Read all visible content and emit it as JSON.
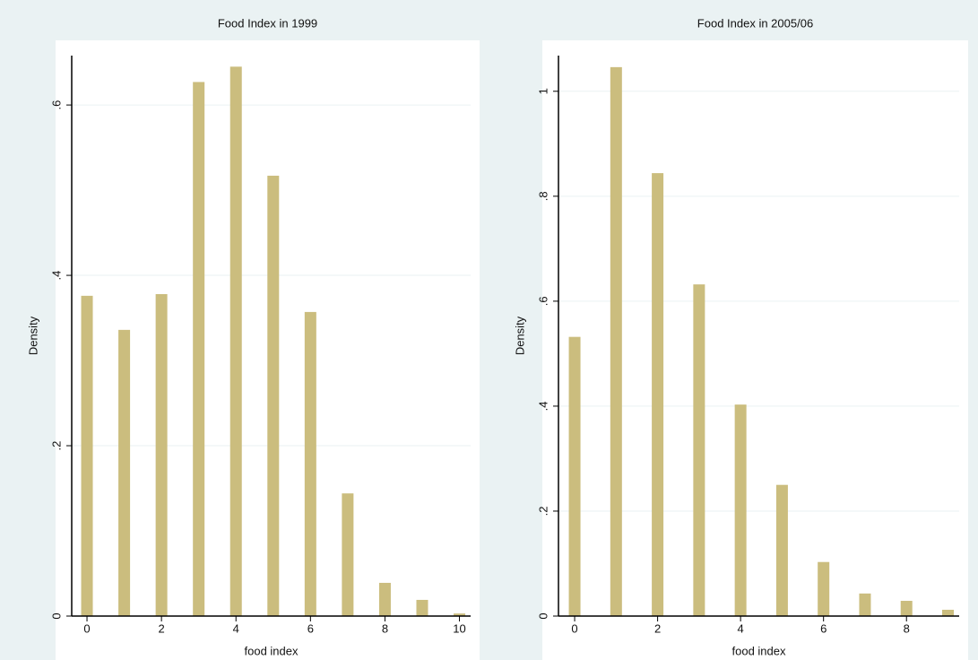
{
  "chart_data": [
    {
      "type": "bar",
      "title": "Food Index in 1999",
      "x_label": "food index",
      "y_label": "Density",
      "x": [
        0,
        1,
        2,
        3,
        4,
        5,
        6,
        7,
        8,
        9,
        10
      ],
      "values": [
        0.376,
        0.336,
        0.378,
        0.627,
        0.645,
        0.517,
        0.357,
        0.144,
        0.039,
        0.019,
        0.003
      ],
      "color": "#cbbd7e",
      "xlim": [
        -0.41,
        10.3
      ],
      "xticks": [
        0,
        2,
        4,
        6,
        8,
        10
      ],
      "ylim": [
        0,
        0.658
      ],
      "yticks": [
        0,
        {
          "value": 0.2,
          "label": ".2"
        },
        {
          "value": 0.4,
          "label": ".4"
        },
        {
          "value": 0.6,
          "label": ".6"
        }
      ],
      "grid": true
    },
    {
      "type": "bar",
      "title": "Food Index in 2005/06",
      "x_label": "food  index",
      "y_label": "Density",
      "x": [
        0,
        1,
        2,
        3,
        4,
        5,
        6,
        7,
        8,
        9
      ],
      "values": [
        0.532,
        1.046,
        0.844,
        0.632,
        0.403,
        0.25,
        0.103,
        0.043,
        0.029,
        0.012
      ],
      "color": "#cbbd7e",
      "xlim": [
        -0.39,
        9.27
      ],
      "xticks": [
        0,
        2,
        4,
        6,
        8
      ],
      "ylim": [
        0,
        1.068
      ],
      "yticks": [
        0,
        {
          "value": 0.2,
          "label": ".2"
        },
        {
          "value": 0.4,
          "label": ".4"
        },
        {
          "value": 0.6,
          "label": ".6"
        },
        {
          "value": 0.8,
          "label": ".8"
        },
        {
          "value": 1,
          "label": "1"
        }
      ],
      "grid": true
    }
  ]
}
